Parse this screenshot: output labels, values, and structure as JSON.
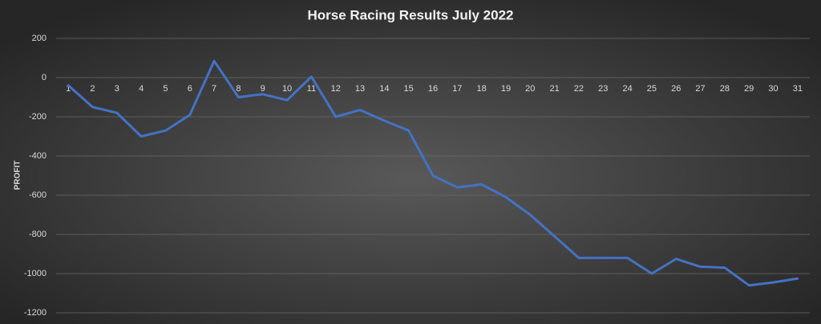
{
  "chart_data": {
    "type": "line",
    "title": "Horse Racing Results July 2022",
    "y_label": "PROFIT",
    "categories": [
      "1",
      "2",
      "3",
      "4",
      "5",
      "6",
      "7",
      "8",
      "9",
      "10",
      "11",
      "12",
      "13",
      "14",
      "15",
      "16",
      "17",
      "18",
      "19",
      "20",
      "21",
      "22",
      "23",
      "24",
      "25",
      "26",
      "27",
      "28",
      "29",
      "30",
      "31"
    ],
    "values": [
      -40,
      -150,
      -180,
      -300,
      -270,
      -190,
      85,
      -100,
      -85,
      -115,
      5,
      -200,
      -165,
      -220,
      -270,
      -500,
      -560,
      -545,
      -610,
      -700,
      -810,
      -920,
      -920,
      -920,
      -1000,
      -925,
      -965,
      -970,
      -1060,
      -1045,
      -1025
    ],
    "color": "#4472c4",
    "ylim": [
      -1200,
      200
    ],
    "yticks": [
      -1200,
      -1000,
      -800,
      -600,
      -400,
      -200,
      0,
      200
    ],
    "grid": true
  }
}
